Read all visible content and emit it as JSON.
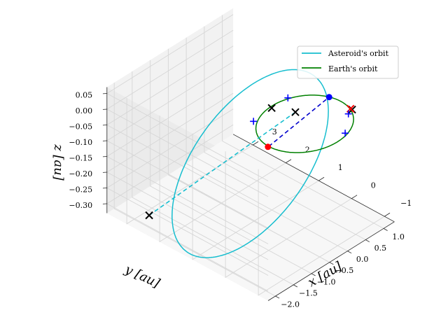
{
  "chart_data": {
    "type": "line3d",
    "title": "",
    "xlabel": "x [au]",
    "ylabel": "y [au]",
    "zlabel": "z [au]",
    "x_ticks": [
      "−2.0",
      "−1.5",
      "−1.0",
      "−0.5",
      "0.0",
      "0.5",
      "1.0"
    ],
    "y_ticks": [
      "−1",
      "0",
      "1",
      "2",
      "3"
    ],
    "z_ticks": [
      "0.05",
      "0.00",
      "−0.05",
      "−0.10",
      "−0.15",
      "−0.20",
      "−0.25",
      "−0.30"
    ],
    "xlim": [
      -2.2,
      1.3
    ],
    "ylim": [
      -1.3,
      3.6
    ],
    "zlim": [
      -0.33,
      0.07
    ],
    "grid": true,
    "legend_position": "top-right",
    "series": [
      {
        "name": "Asteroid's orbit",
        "color": "#17becf",
        "style": "solid",
        "shape": "ellipse",
        "center": [
          -0.6,
          1.0,
          -0.14
        ],
        "axis_u": [
          1.25,
          -1.0,
          0.15
        ],
        "axis_v": [
          0.95,
          1.2,
          0.1
        ]
      },
      {
        "name": "Earth's orbit",
        "color": "#008000",
        "style": "solid",
        "shape": "ellipse",
        "center": [
          0,
          0,
          0
        ],
        "axis_u": [
          1,
          0,
          0
        ],
        "axis_v": [
          0,
          1,
          0
        ]
      }
    ],
    "dashed_lines": [
      {
        "name": "asteroid-apsides-line",
        "color": "#17becf",
        "points": [
          [
            0.27,
            0.58,
            -0.015
          ],
          [
            -1.97,
            2.57,
            -0.295
          ]
        ]
      },
      {
        "name": "earth-line-of-nodes",
        "color": "#0000cc",
        "points": [
          [
            -1.0,
            0.0,
            0.0
          ],
          [
            0.95,
            0.3,
            0.0
          ]
        ]
      }
    ],
    "markers": [
      {
        "name": "perihelion-cross",
        "type": "x",
        "color": "#000000",
        "pos": [
          0.27,
          0.58,
          -0.015
        ]
      },
      {
        "name": "aphelion-cross",
        "type": "x",
        "color": "#000000",
        "pos": [
          -1.97,
          2.57,
          -0.295
        ]
      },
      {
        "name": "node-cross-left",
        "type": "x",
        "color": "#000000",
        "pos": [
          -0.05,
          0.95,
          0.0
        ]
      },
      {
        "name": "node-cross-right",
        "type": "x",
        "color": "#000000",
        "pos": [
          0.95,
          -0.4,
          0.0
        ]
      },
      {
        "name": "node-red-x",
        "type": "x",
        "color": "#ff0000",
        "pos": [
          0.95,
          -0.35,
          0.0
        ]
      },
      {
        "name": "node-plus-top-left",
        "type": "+",
        "color": "#0000ff",
        "pos": [
          -0.6,
          0.9,
          0.0
        ]
      },
      {
        "name": "node-plus-top-right",
        "type": "+",
        "color": "#0000ff",
        "pos": [
          0.4,
          0.95,
          0.0
        ]
      },
      {
        "name": "node-plus-bottom",
        "type": "+",
        "color": "#0000ff",
        "pos": [
          0.3,
          -0.9,
          0.0
        ]
      },
      {
        "name": "node-plus-right",
        "type": "+",
        "color": "#0000ff",
        "pos": [
          0.8,
          -0.45,
          0.0
        ]
      },
      {
        "name": "asteroid-dot",
        "type": "dot",
        "color": "#ff0000",
        "pos": [
          -1.02,
          0.0,
          0.0
        ]
      },
      {
        "name": "earth-dot",
        "type": "dot",
        "color": "#0000ff",
        "pos": [
          0.95,
          0.3,
          0.0
        ]
      }
    ]
  }
}
